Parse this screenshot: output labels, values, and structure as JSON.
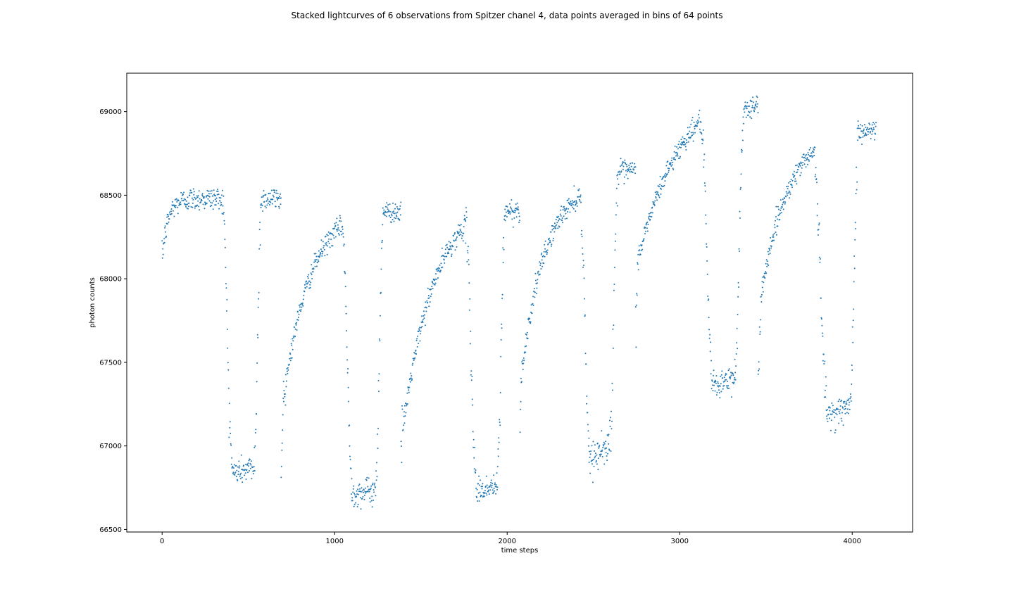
{
  "chart_data": {
    "type": "scatter",
    "title": "Stacked lightcurves of 6 observations from Spitzer chanel 4, data points averaged in bins of 64 points",
    "xlabel": "time steps",
    "ylabel": "photon counts",
    "xlim": [
      -205,
      4350
    ],
    "ylim": [
      66485,
      69230
    ],
    "xticks": [
      0,
      1000,
      2000,
      3000,
      4000
    ],
    "yticks": [
      66500,
      67000,
      67500,
      68000,
      68500,
      69000
    ],
    "grid": false,
    "marker_color": "#1f77b4",
    "segments": [
      {
        "kind": "rise",
        "t0": 0,
        "t1": 350,
        "y0": 68130,
        "y1": 68480,
        "tau": 35,
        "noise": 35
      },
      {
        "kind": "drop",
        "t0": 350,
        "t1": 405,
        "y0": 68460,
        "y1": 66950,
        "noise": 60
      },
      {
        "kind": "flat",
        "t0": 405,
        "t1": 535,
        "y0": 66840,
        "y1": 66870,
        "noise": 40
      },
      {
        "kind": "drop",
        "t0": 535,
        "t1": 575,
        "y0": 66950,
        "y1": 68430,
        "noise": 80
      },
      {
        "kind": "flat",
        "t0": 575,
        "t1": 690,
        "y0": 68480,
        "y1": 68480,
        "noise": 35
      },
      {
        "kind": "drop",
        "t0": 690,
        "t1": 705,
        "y0": 66880,
        "y1": 67300,
        "noise": 60
      },
      {
        "kind": "rise",
        "t0": 705,
        "t1": 1045,
        "y0": 67300,
        "y1": 68320,
        "tau": 160,
        "noise": 30
      },
      {
        "kind": "drop",
        "t0": 1045,
        "t1": 1100,
        "y0": 68300,
        "y1": 66800,
        "noise": 60
      },
      {
        "kind": "flat",
        "t0": 1100,
        "t1": 1240,
        "y0": 66720,
        "y1": 66730,
        "noise": 40
      },
      {
        "kind": "drop",
        "t0": 1240,
        "t1": 1280,
        "y0": 66850,
        "y1": 68350,
        "noise": 80
      },
      {
        "kind": "flat",
        "t0": 1280,
        "t1": 1385,
        "y0": 68400,
        "y1": 68400,
        "noise": 30
      },
      {
        "kind": "drop",
        "t0": 1385,
        "t1": 1395,
        "y0": 66910,
        "y1": 67200,
        "noise": 60
      },
      {
        "kind": "rise",
        "t0": 1395,
        "t1": 1760,
        "y0": 67100,
        "y1": 68320,
        "tau": 190,
        "noise": 30
      },
      {
        "kind": "drop",
        "t0": 1760,
        "t1": 1820,
        "y0": 68300,
        "y1": 66830,
        "noise": 60
      },
      {
        "kind": "flat",
        "t0": 1820,
        "t1": 1945,
        "y0": 66730,
        "y1": 66760,
        "noise": 40
      },
      {
        "kind": "drop",
        "t0": 1945,
        "t1": 1985,
        "y0": 66850,
        "y1": 68300,
        "noise": 80
      },
      {
        "kind": "flat",
        "t0": 1985,
        "t1": 2075,
        "y0": 68400,
        "y1": 68410,
        "noise": 35
      },
      {
        "kind": "drop",
        "t0": 2075,
        "t1": 2080,
        "y0": 67130,
        "y1": 67300,
        "noise": 60
      },
      {
        "kind": "rise",
        "t0": 2080,
        "t1": 2430,
        "y0": 67400,
        "y1": 68500,
        "tau": 140,
        "noise": 30
      },
      {
        "kind": "drop",
        "t0": 2430,
        "t1": 2475,
        "y0": 68300,
        "y1": 67050,
        "noise": 60
      },
      {
        "kind": "flat",
        "t0": 2475,
        "t1": 2595,
        "y0": 66920,
        "y1": 67010,
        "noise": 40
      },
      {
        "kind": "drop",
        "t0": 2595,
        "t1": 2640,
        "y0": 67050,
        "y1": 68550,
        "noise": 80
      },
      {
        "kind": "flat",
        "t0": 2640,
        "t1": 2745,
        "y0": 68630,
        "y1": 68650,
        "noise": 35
      },
      {
        "kind": "drop",
        "t0": 2745,
        "t1": 2755,
        "y0": 67750,
        "y1": 67950,
        "noise": 60
      },
      {
        "kind": "rise",
        "t0": 2755,
        "t1": 3125,
        "y0": 68100,
        "y1": 68950,
        "tau": 260,
        "noise": 30
      },
      {
        "kind": "drop",
        "t0": 3125,
        "t1": 3185,
        "y0": 68900,
        "y1": 67500,
        "noise": 60
      },
      {
        "kind": "flat",
        "t0": 3185,
        "t1": 3320,
        "y0": 67360,
        "y1": 67400,
        "noise": 40
      },
      {
        "kind": "drop",
        "t0": 3320,
        "t1": 3370,
        "y0": 67450,
        "y1": 68900,
        "noise": 80
      },
      {
        "kind": "flat",
        "t0": 3370,
        "t1": 3455,
        "y0": 69020,
        "y1": 69030,
        "noise": 35
      },
      {
        "kind": "drop",
        "t0": 3455,
        "t1": 3470,
        "y0": 67430,
        "y1": 67700,
        "noise": 60
      },
      {
        "kind": "rise",
        "t0": 3470,
        "t1": 3785,
        "y0": 67900,
        "y1": 68780,
        "tau": 170,
        "noise": 30
      },
      {
        "kind": "drop",
        "t0": 3785,
        "t1": 3850,
        "y0": 68600,
        "y1": 67300,
        "noise": 60
      },
      {
        "kind": "flat",
        "t0": 3850,
        "t1": 3990,
        "y0": 67190,
        "y1": 67230,
        "noise": 40
      },
      {
        "kind": "drop",
        "t0": 3990,
        "t1": 4030,
        "y0": 67300,
        "y1": 68700,
        "noise": 80
      },
      {
        "kind": "flat",
        "t0": 4030,
        "t1": 4140,
        "y0": 68870,
        "y1": 68890,
        "noise": 35
      }
    ]
  }
}
